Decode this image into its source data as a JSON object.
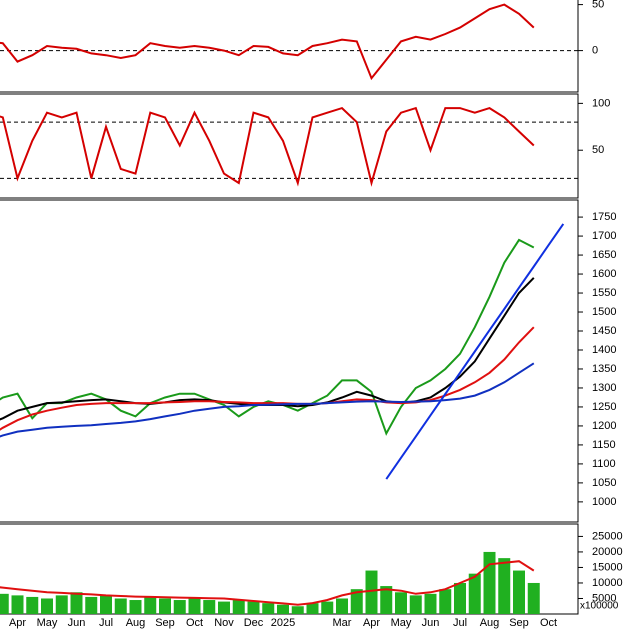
{
  "chart_data": [
    {
      "type": "line",
      "ylim": [
        -45,
        55
      ],
      "yticks": [
        0,
        50
      ],
      "reference_lines": [
        0
      ],
      "series": [
        {
          "color": "#d40000",
          "values": [
            10,
            8,
            -12,
            -5,
            5,
            3,
            2,
            -3,
            -5,
            -8,
            -5,
            8,
            5,
            3,
            5,
            3,
            0,
            -5,
            5,
            4,
            -3,
            -5,
            5,
            8,
            12,
            10,
            -30,
            -10,
            10,
            15,
            12,
            18,
            25,
            35,
            45,
            50,
            40,
            25,
            null,
            null
          ]
        }
      ]
    },
    {
      "type": "line",
      "ylim": [
        -1,
        110
      ],
      "yticks": [
        50,
        100
      ],
      "reference_lines": [
        80,
        20
      ],
      "series": [
        {
          "color": "#d40000",
          "values": [
            90,
            85,
            20,
            60,
            90,
            85,
            90,
            20,
            75,
            30,
            25,
            90,
            85,
            55,
            90,
            60,
            25,
            15,
            90,
            85,
            60,
            15,
            85,
            90,
            95,
            80,
            15,
            70,
            90,
            95,
            50,
            95,
            95,
            90,
            95,
            85,
            70,
            55,
            null,
            null
          ]
        }
      ]
    },
    {
      "type": "line",
      "ylim": [
        947,
        1795
      ],
      "yticks": [
        1000,
        1050,
        1100,
        1150,
        1200,
        1250,
        1300,
        1350,
        1400,
        1450,
        1500,
        1550,
        1600,
        1650,
        1700,
        1750
      ],
      "series": [
        {
          "color": "#1a9a1a",
          "values": [
            1250,
            1275,
            1285,
            1220,
            1260,
            1260,
            1275,
            1285,
            1270,
            1240,
            1225,
            1260,
            1275,
            1285,
            1285,
            1270,
            1255,
            1225,
            1250,
            1265,
            1255,
            1240,
            1260,
            1280,
            1320,
            1320,
            1290,
            1180,
            1250,
            1300,
            1320,
            1350,
            1390,
            1460,
            1540,
            1630,
            1690,
            1670,
            null,
            null
          ]
        },
        {
          "color": "#000000",
          "values": [
            1205,
            1220,
            1240,
            1250,
            1260,
            1262,
            1265,
            1268,
            1270,
            1265,
            1260,
            1258,
            1262,
            1268,
            1270,
            1268,
            1262,
            1258,
            1255,
            1255,
            1255,
            1252,
            1255,
            1262,
            1275,
            1290,
            1280,
            1265,
            1260,
            1265,
            1275,
            1300,
            1330,
            1370,
            1430,
            1490,
            1550,
            1590,
            null,
            null
          ]
        },
        {
          "color": "#e01010",
          "values": [
            1170,
            1195,
            1215,
            1230,
            1240,
            1248,
            1255,
            1258,
            1260,
            1260,
            1260,
            1260,
            1262,
            1263,
            1265,
            1265,
            1263,
            1262,
            1260,
            1260,
            1260,
            1258,
            1258,
            1260,
            1265,
            1270,
            1268,
            1262,
            1260,
            1262,
            1268,
            1280,
            1295,
            1315,
            1340,
            1375,
            1420,
            1460,
            null,
            null
          ]
        },
        {
          "color": "#1030c0",
          "values": [
            1160,
            1175,
            1185,
            1190,
            1195,
            1198,
            1200,
            1202,
            1205,
            1208,
            1212,
            1218,
            1225,
            1232,
            1240,
            1245,
            1250,
            1252,
            1255,
            1256,
            1257,
            1258,
            1258,
            1260,
            1262,
            1264,
            1265,
            1264,
            1263,
            1264,
            1265,
            1268,
            1272,
            1280,
            1295,
            1315,
            1340,
            1365,
            null,
            null
          ]
        },
        {
          "color": "#1030e0",
          "values": [
            null,
            null,
            null,
            null,
            null,
            null,
            null,
            null,
            null,
            null,
            null,
            null,
            null,
            null,
            null,
            null,
            null,
            null,
            null,
            null,
            null,
            null,
            null,
            null,
            null,
            null,
            null,
            1060,
            1116,
            1172,
            1228,
            1284,
            1340,
            1396,
            1452,
            1508,
            1564,
            1620,
            1676,
            1732
          ]
        }
      ]
    },
    {
      "type": "bar",
      "ylim": [
        0,
        29000
      ],
      "yticks": [
        5000,
        10000,
        15000,
        20000,
        25000
      ],
      "axis_label": "x100000",
      "categories": [
        null,
        null,
        "Apr",
        null,
        "May",
        null,
        "Jun",
        null,
        "Jul",
        null,
        "Aug",
        null,
        "Sep",
        null,
        "Oct",
        null,
        "Nov",
        null,
        "Dec",
        null,
        "2025",
        null,
        null,
        null,
        "Mar",
        null,
        "Apr",
        null,
        "May",
        null,
        "Jun",
        null,
        "Jul",
        null,
        "Aug",
        null,
        "Sep",
        null,
        "Oct",
        null
      ],
      "series": [
        {
          "type": "bar",
          "color": "#20b020",
          "values": [
            7000,
            6500,
            6000,
            5500,
            5000,
            6000,
            7000,
            5500,
            6000,
            5000,
            4500,
            5500,
            5000,
            4500,
            5000,
            4500,
            4000,
            4500,
            4000,
            3500,
            3000,
            2500,
            3500,
            4000,
            5000,
            8000,
            14000,
            9000,
            7000,
            6000,
            6500,
            8000,
            10000,
            13000,
            20000,
            18000,
            14000,
            10000,
            null,
            null
          ]
        },
        {
          "type": "line",
          "color": "#e01010",
          "values": [
            9000,
            8500,
            8000,
            7500,
            7000,
            6800,
            6500,
            6300,
            6000,
            5800,
            5600,
            5500,
            5400,
            5300,
            5200,
            5100,
            5000,
            4600,
            4200,
            3800,
            3400,
            3000,
            3500,
            4500,
            6000,
            7000,
            7500,
            8000,
            7500,
            6500,
            7000,
            8000,
            10000,
            12000,
            16000,
            16500,
            17000,
            14000,
            null,
            null
          ]
        }
      ]
    }
  ]
}
